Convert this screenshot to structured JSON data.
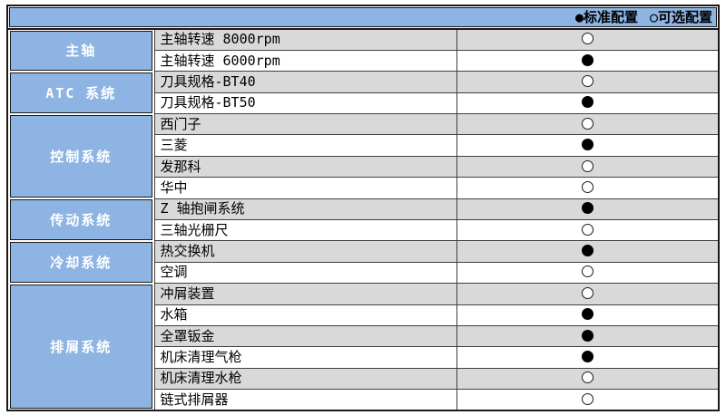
{
  "colors": {
    "header_bg": "#8DB4E2",
    "category_bg": "#8DB4E2",
    "stripe_row_bg": "#D9D9D9",
    "plain_row_bg": "#FFFFFF",
    "border_dark": "#1A1A1A",
    "border_inner": "#404040",
    "category_text": "#FFFFFF",
    "text": "#000000"
  },
  "legend": {
    "standard_label": "●标准配置",
    "optional_label": "○可选配置"
  },
  "marker_glyphs": {
    "standard": "●",
    "optional": "○"
  },
  "table": {
    "groups": [
      {
        "category": "主轴",
        "items": [
          {
            "label": "主轴转速 8000rpm",
            "config": "optional"
          },
          {
            "label": "主轴转速 6000rpm",
            "config": "standard"
          }
        ]
      },
      {
        "category": "ATC 系统",
        "items": [
          {
            "label": "刀具规格-BT40",
            "config": "optional"
          },
          {
            "label": "刀具规格-BT50",
            "config": "standard"
          }
        ]
      },
      {
        "category": "控制系统",
        "items": [
          {
            "label": "西门子",
            "config": "optional"
          },
          {
            "label": "三菱",
            "config": "standard"
          },
          {
            "label": "发那科",
            "config": "optional"
          },
          {
            "label": "华中",
            "config": "optional"
          }
        ]
      },
      {
        "category": "传动系统",
        "items": [
          {
            "label": "Z 轴抱闸系统",
            "config": "standard"
          },
          {
            "label": "三轴光栅尺",
            "config": "optional"
          }
        ]
      },
      {
        "category": "冷却系统",
        "items": [
          {
            "label": "热交换机",
            "config": "standard"
          },
          {
            "label": "空调",
            "config": "optional"
          }
        ]
      },
      {
        "category": "排屑系统",
        "items": [
          {
            "label": "冲屑装置",
            "config": "optional"
          },
          {
            "label": "水箱",
            "config": "standard"
          },
          {
            "label": "全罩钣金",
            "config": "standard"
          },
          {
            "label": "机床清理气枪",
            "config": "standard"
          },
          {
            "label": "机床清理水枪",
            "config": "optional"
          },
          {
            "label": "链式排屑器",
            "config": "optional"
          }
        ]
      }
    ]
  }
}
